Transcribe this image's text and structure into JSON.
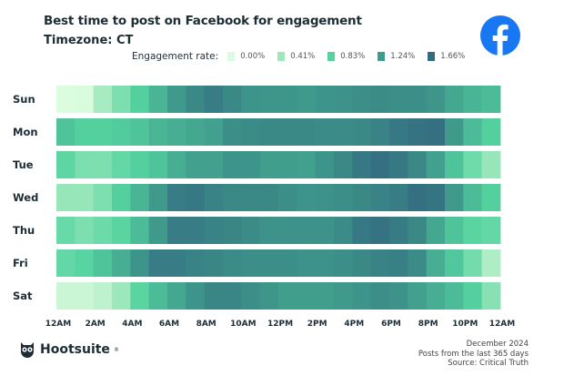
{
  "header": {
    "title": "Best time to post on Facebook for engagement",
    "subtitle": "Timezone: CT",
    "icon": "facebook-icon",
    "brand_color": "#1877f2"
  },
  "legend": {
    "label": "Engagement rate:",
    "items": [
      {
        "label": "0.00%",
        "value": 0.0,
        "color": "#dcfce0"
      },
      {
        "label": "0.41%",
        "value": 0.41,
        "color": "#9ee8bd"
      },
      {
        "label": "0.83%",
        "value": 0.83,
        "color": "#55d3a0"
      },
      {
        "label": "1.24%",
        "value": 1.24,
        "color": "#3f9b8c"
      },
      {
        "label": "1.66%",
        "value": 1.66,
        "color": "#336b80"
      }
    ]
  },
  "chart_data": {
    "type": "heatmap",
    "title": "Best time to post on Facebook for engagement",
    "subtitle": "Timezone: CT",
    "value_unit": "%",
    "value_range": [
      0,
      1.66
    ],
    "rows": [
      "Sun",
      "Mon",
      "Tue",
      "Wed",
      "Thu",
      "Fri",
      "Sat"
    ],
    "x_tick_labels": [
      "12AM",
      "2AM",
      "4AM",
      "6AM",
      "8AM",
      "10AM",
      "12PM",
      "2PM",
      "4PM",
      "6PM",
      "8PM",
      "10PM",
      "12AM"
    ],
    "hours": [
      0,
      1,
      2,
      3,
      4,
      5,
      6,
      7,
      8,
      9,
      10,
      11,
      12,
      13,
      14,
      15,
      16,
      17,
      18,
      19,
      20,
      21,
      22,
      23
    ],
    "values": [
      [
        0.0,
        0.02,
        0.35,
        0.6,
        0.85,
        1.05,
        1.25,
        1.4,
        1.5,
        1.4,
        1.3,
        1.28,
        1.28,
        1.25,
        1.3,
        1.32,
        1.35,
        1.38,
        1.35,
        1.35,
        1.28,
        1.15,
        1.05,
        1.0
      ],
      [
        0.95,
        0.85,
        0.85,
        0.88,
        0.95,
        1.05,
        1.1,
        1.15,
        1.2,
        1.35,
        1.38,
        1.4,
        1.4,
        1.4,
        1.38,
        1.38,
        1.4,
        1.45,
        1.55,
        1.6,
        1.62,
        1.25,
        1.0,
        0.85
      ],
      [
        0.78,
        0.62,
        0.6,
        0.75,
        0.85,
        0.95,
        1.1,
        1.2,
        1.2,
        1.3,
        1.3,
        1.22,
        1.22,
        1.2,
        1.3,
        1.4,
        1.55,
        1.62,
        1.55,
        1.4,
        1.2,
        0.95,
        0.68,
        0.45
      ],
      [
        0.45,
        0.45,
        0.6,
        0.85,
        1.05,
        1.25,
        1.5,
        1.55,
        1.45,
        1.4,
        1.4,
        1.4,
        1.35,
        1.3,
        1.32,
        1.35,
        1.4,
        1.45,
        1.5,
        1.62,
        1.58,
        1.25,
        1.0,
        0.85
      ],
      [
        0.72,
        0.6,
        0.7,
        0.8,
        1.0,
        1.25,
        1.5,
        1.5,
        1.45,
        1.42,
        1.38,
        1.32,
        1.32,
        1.32,
        1.32,
        1.38,
        1.55,
        1.6,
        1.52,
        1.4,
        1.15,
        0.95,
        0.8,
        0.75
      ],
      [
        0.75,
        0.82,
        0.95,
        1.1,
        1.3,
        1.5,
        1.5,
        1.45,
        1.42,
        1.38,
        1.35,
        1.35,
        1.35,
        1.32,
        1.32,
        1.35,
        1.4,
        1.45,
        1.48,
        1.38,
        1.1,
        0.92,
        0.65,
        0.3
      ],
      [
        0.12,
        0.12,
        0.2,
        0.42,
        0.8,
        1.0,
        1.15,
        1.3,
        1.42,
        1.42,
        1.35,
        1.28,
        1.22,
        1.22,
        1.22,
        1.25,
        1.3,
        1.35,
        1.32,
        1.2,
        1.1,
        1.0,
        0.85,
        0.55
      ]
    ]
  },
  "footer": {
    "brand": "Hootsuite",
    "brand_mark": "®",
    "notes": [
      "December 2024",
      "Posts from the last 365 days",
      "Source: Critical Truth"
    ]
  }
}
